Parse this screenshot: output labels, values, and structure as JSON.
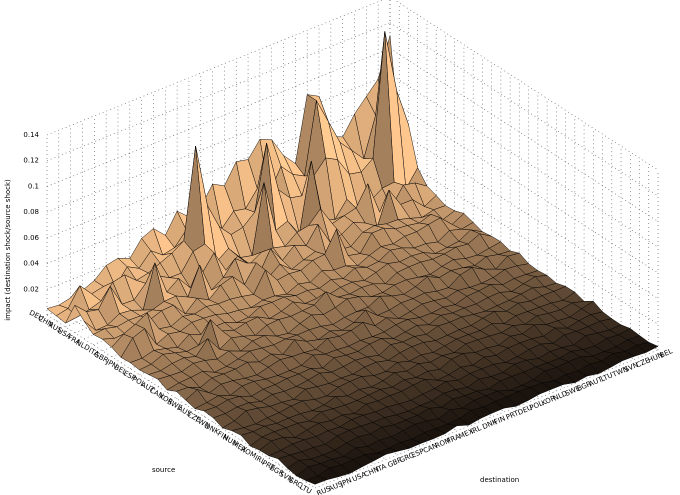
{
  "chart_data": {
    "type": "surface-3d",
    "title": "",
    "xlabel": "destination",
    "ylabel": "source",
    "zlabel": "impact (destination shock/source shock)",
    "zlim": [
      0,
      0.14
    ],
    "z_ticks": [
      "0.02",
      "0.04",
      "0.06",
      "0.08",
      "0.1",
      "0.12",
      "0.14"
    ],
    "grid": true,
    "source_categories": [
      "DEU",
      "CHN",
      "RUS",
      "USA",
      "FRA",
      "NLD",
      "ITA",
      "GBR",
      "JPN",
      "BEL",
      "ESP",
      "POL",
      "AUT",
      "CAN",
      "KOR",
      "SWE",
      "AUS",
      "CZE",
      "TWN",
      "DNK",
      "FIN",
      "HUN",
      "MEX",
      "ROM",
      "IRL",
      "PRT",
      "BGR",
      "SVN",
      "GRC",
      "LTU"
    ],
    "destination_categories": [
      "RUS",
      "AUS",
      "JPN",
      "USA",
      "CHN",
      "ITA",
      "GBR",
      "GRC",
      "ESP",
      "CAN",
      "ROM",
      "FRA",
      "MEX",
      "IRL",
      "DNK",
      "FIN",
      "PRT",
      "DEU",
      "POL",
      "KOR",
      "NLD",
      "SWE",
      "BGR",
      "AUT",
      "LTU",
      "TWN",
      "SVN",
      "CZE",
      "HUN",
      "BEL"
    ],
    "peak_values": {
      "description_note": "",
      "DEU": [
        0.005,
        0.004,
        0.006,
        0.008,
        0.012,
        0.02,
        0.022,
        0.018,
        0.03,
        0.034,
        0.025,
        0.04,
        0.032,
        0.036,
        0.05,
        0.045,
        0.06,
        0.058,
        0.07,
        0.066,
        0.05,
        0.04,
        0.09,
        0.085,
        0.05,
        0.046,
        0.06,
        0.07,
        0.08,
        0.11
      ],
      "CHN": [
        0.004,
        0.006,
        0.02,
        0.01,
        0.012,
        0.008,
        0.02,
        0.015,
        0.025,
        0.018,
        0.02,
        0.03,
        0.024,
        0.026,
        0.02,
        0.03,
        0.028,
        0.04,
        0.032,
        0.05,
        0.04,
        0.035,
        0.09,
        0.07,
        0.05,
        0.04,
        0.03,
        0.06,
        0.045,
        0.04
      ],
      "RUS": [
        0.003,
        0.004,
        0.006,
        0.009,
        0.02,
        0.022,
        0.014,
        0.016,
        0.02,
        0.024,
        0.03,
        0.1,
        0.05,
        0.03,
        0.02,
        0.022,
        0.03,
        0.08,
        0.04,
        0.03,
        0.028,
        0.04,
        0.05,
        0.045,
        0.03,
        0.028,
        0.035,
        0.13,
        0.08,
        0.05
      ]
    }
  }
}
